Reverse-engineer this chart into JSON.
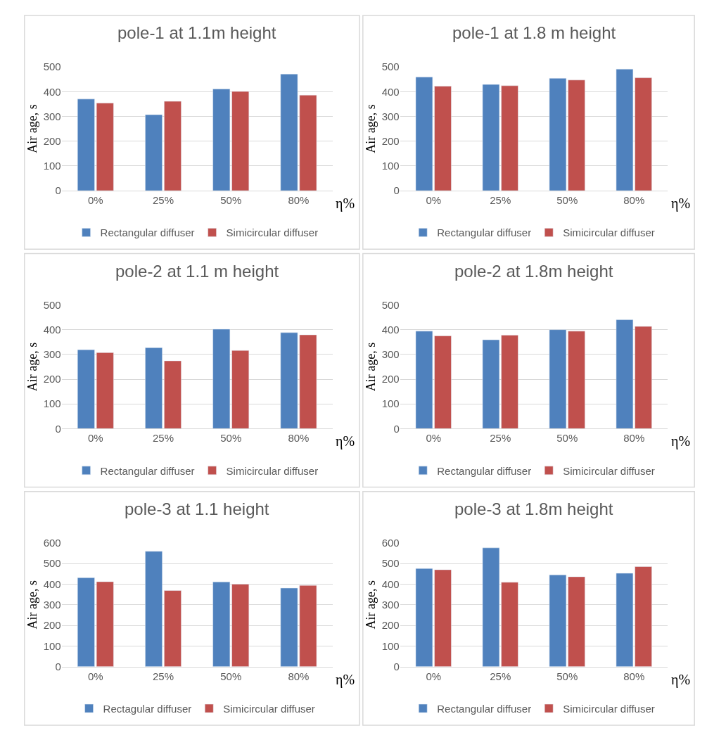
{
  "chart_data": [
    {
      "type": "bar",
      "title": "pole-1 at 1.1m height",
      "xlabel": "η%",
      "ylabel": "Air age, s",
      "categories": [
        "0%",
        "25%",
        "50%",
        "80%"
      ],
      "ylim": [
        0,
        500
      ],
      "yticks": [
        0,
        100,
        200,
        300,
        400,
        500
      ],
      "grid": "y",
      "legend": "bottom",
      "series": [
        {
          "name": "Rectangular diffuser",
          "color": "#4f81bd",
          "values": [
            370,
            307,
            411,
            471
          ]
        },
        {
          "name": "Simicircular diffuser",
          "color": "#c0504d",
          "values": [
            354,
            361,
            401,
            386
          ]
        }
      ]
    },
    {
      "type": "bar",
      "title": "pole-1 at 1.8 m height",
      "xlabel": "η%",
      "ylabel": "Air age, s",
      "categories": [
        "0%",
        "25%",
        "50%",
        "80%"
      ],
      "ylim": [
        0,
        500
      ],
      "yticks": [
        0,
        100,
        200,
        300,
        400,
        500
      ],
      "grid": "y",
      "legend": "bottom",
      "series": [
        {
          "name": "Rectangular diffuser",
          "color": "#4f81bd",
          "values": [
            459,
            429,
            454,
            491
          ]
        },
        {
          "name": "Simicircular diffuser",
          "color": "#c0504d",
          "values": [
            422,
            424,
            447,
            456
          ]
        }
      ]
    },
    {
      "type": "bar",
      "title": "pole-2 at 1.1 m height",
      "xlabel": "η%",
      "ylabel": "Air age, s",
      "categories": [
        "0%",
        "25%",
        "50%",
        "80%"
      ],
      "ylim": [
        0,
        500
      ],
      "yticks": [
        0,
        100,
        200,
        300,
        400,
        500
      ],
      "grid": "y",
      "legend": "bottom",
      "series": [
        {
          "name": "Rectangular diffuser",
          "color": "#4f81bd",
          "values": [
            319,
            327,
            402,
            388
          ]
        },
        {
          "name": "Simicircular diffuser",
          "color": "#c0504d",
          "values": [
            307,
            274,
            316,
            379
          ]
        }
      ]
    },
    {
      "type": "bar",
      "title": "pole-2 at 1.8m height",
      "xlabel": "η%",
      "ylabel": "Air age, s",
      "categories": [
        "0%",
        "25%",
        "50%",
        "80%"
      ],
      "ylim": [
        0,
        500
      ],
      "yticks": [
        0,
        100,
        200,
        300,
        400,
        500
      ],
      "grid": "y",
      "legend": "bottom",
      "series": [
        {
          "name": "Rectangular diffuser",
          "color": "#4f81bd",
          "values": [
            394,
            359,
            400,
            440
          ]
        },
        {
          "name": "Simicircular diffuser",
          "color": "#c0504d",
          "values": [
            375,
            378,
            394,
            413
          ]
        }
      ]
    },
    {
      "type": "bar",
      "title": "pole-3 at 1.1 height",
      "xlabel": "η%",
      "ylabel": "Air age, s",
      "categories": [
        "0%",
        "25%",
        "50%",
        "80%"
      ],
      "ylim": [
        0,
        600
      ],
      "yticks": [
        0,
        100,
        200,
        300,
        400,
        500,
        600
      ],
      "grid": "y",
      "legend": "bottom",
      "series": [
        {
          "name": "Rectagular diffuser",
          "color": "#4f81bd",
          "values": [
            431,
            559,
            411,
            381
          ]
        },
        {
          "name": "Simicircular diffuser",
          "color": "#c0504d",
          "values": [
            412,
            369,
            400,
            394
          ]
        }
      ]
    },
    {
      "type": "bar",
      "title": "pole-3 at 1.8m height",
      "xlabel": "η%",
      "ylabel": "Air age, s",
      "categories": [
        "0%",
        "25%",
        "50%",
        "80%"
      ],
      "ylim": [
        0,
        600
      ],
      "yticks": [
        0,
        100,
        200,
        300,
        400,
        500,
        600
      ],
      "grid": "y",
      "legend": "bottom",
      "series": [
        {
          "name": "Rectangular diffuser",
          "color": "#4f81bd",
          "values": [
            476,
            576,
            445,
            453
          ]
        },
        {
          "name": "Simicircular diffuser",
          "color": "#c0504d",
          "values": [
            470,
            409,
            436,
            485
          ]
        }
      ]
    }
  ]
}
